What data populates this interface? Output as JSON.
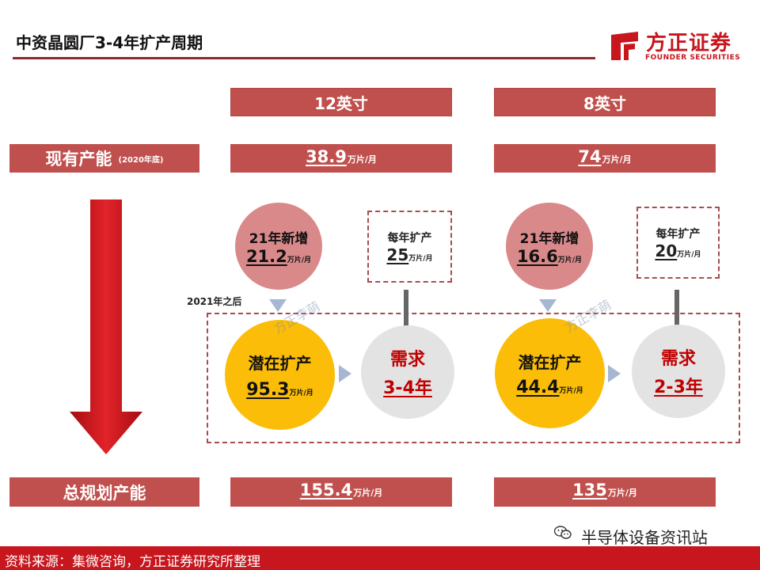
{
  "title": "中资晶圆厂3-4年扩产周期",
  "logo": {
    "name_cn": "方正证券",
    "name_en": "FOUNDER SECURITIES",
    "brand_color": "#c7161d"
  },
  "columns": [
    {
      "size": "12英寸",
      "existing_value": "38.9",
      "existing_unit": "万片/月",
      "new_21_title": "21年新增",
      "new_21_value": "21.2",
      "new_21_unit": "万片/月",
      "annual_label": "每年扩产",
      "annual_value": "25",
      "annual_unit": "万片/月",
      "potential_title": "潜在扩产",
      "potential_value": "95.3",
      "potential_unit": "万片/月",
      "demand_title": "需求",
      "demand_years": "3-4年",
      "total_value": "155.4",
      "total_unit": "万片/月"
    },
    {
      "size": "8英寸",
      "existing_value": "74",
      "existing_unit": "万片/月",
      "new_21_title": "21年新增",
      "new_21_value": "16.6",
      "new_21_unit": "万片/月",
      "annual_label": "每年扩产",
      "annual_value": "20",
      "annual_unit": "万片/月",
      "potential_title": "潜在扩产",
      "potential_value": "44.4",
      "potential_unit": "万片/月",
      "demand_title": "需求",
      "demand_years": "2-3年",
      "total_value": "135",
      "total_unit": "万片/月"
    }
  ],
  "rows": {
    "existing_label": "现有产能",
    "existing_note": "(2020年底)",
    "total_label": "总规划产能"
  },
  "after_label": "2021年之后",
  "watermark": "方正李萌",
  "footer": "资料来源：集微咨询，方正证券研究所整理",
  "wechat_account": "半导体设备资讯站",
  "colors": {
    "header_red": "#c0504d",
    "pink": "#d9898a",
    "yellow": "#fbbd08",
    "gray": "#e3e3e3",
    "demand_red": "#c00000"
  },
  "icons": [
    "down-arrow-icon",
    "triangle-down-icon",
    "triangle-right-icon",
    "gray-arrow-down-icon",
    "wechat-icon",
    "logo-icon"
  ]
}
